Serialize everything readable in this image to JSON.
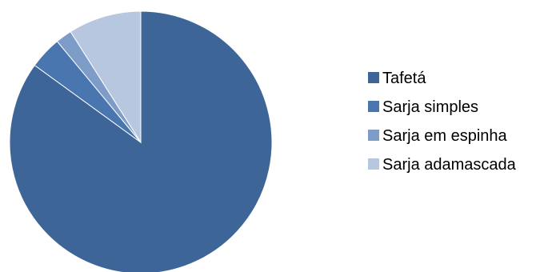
{
  "chart_data": {
    "type": "pie",
    "title": "",
    "categories": [
      "Tafetá",
      "Sarja simples",
      "Sarja em espinha",
      "Sarja adamascada"
    ],
    "values": [
      85,
      4,
      2,
      9
    ],
    "unit": "%",
    "start_angle_deg": 0,
    "direction": "clockwise",
    "legend_position": "right",
    "colors": [
      "#3D6597",
      "#4A76B0",
      "#7E9CC8",
      "#B8C7E0"
    ],
    "slice_stroke": "#ffffff"
  }
}
